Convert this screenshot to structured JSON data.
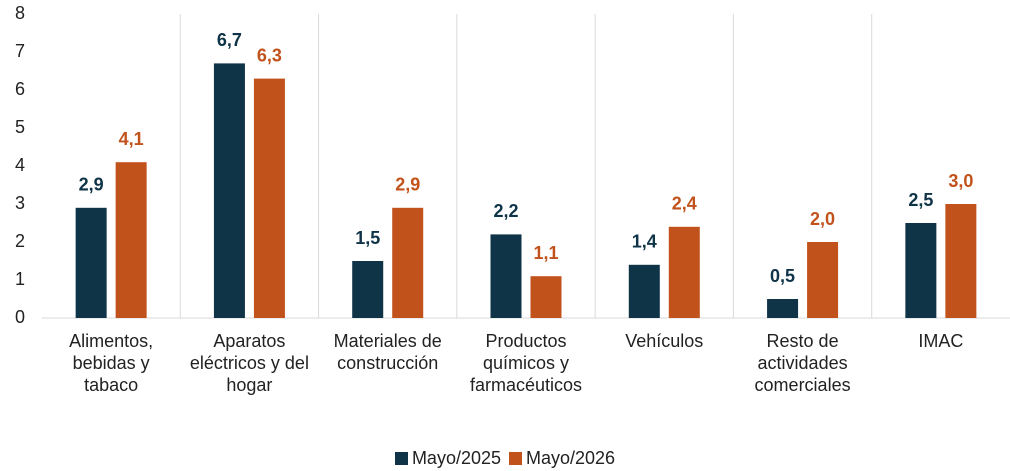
{
  "chart_data": {
    "type": "bar",
    "categories": [
      "Alimentos, bebidas y tabaco",
      "Aparatos eléctricos y del hogar",
      "Materiales de construcción",
      "Productos químicos y farmacéuticos",
      "Vehículos",
      "Resto de actividades comerciales",
      "IMAC"
    ],
    "series": [
      {
        "name": "Mayo/2025",
        "color": "#0f3347",
        "values": [
          2.9,
          6.7,
          1.5,
          2.2,
          1.4,
          0.5,
          2.5
        ],
        "value_labels": [
          "2,9",
          "6,7",
          "1,5",
          "2,2",
          "1,4",
          "0,5",
          "2,5"
        ]
      },
      {
        "name": "Mayo/2026",
        "color": "#c2521b",
        "values": [
          4.1,
          6.3,
          2.9,
          1.1,
          2.4,
          2.0,
          3.0
        ],
        "value_labels": [
          "4,1",
          "6,3",
          "2,9",
          "1,1",
          "2,4",
          "2,0",
          "3,0"
        ]
      }
    ],
    "ylim": [
      0,
      8
    ],
    "yticks": [
      0,
      1,
      2,
      3,
      4,
      5,
      6,
      7,
      8
    ],
    "legend": "bottom"
  }
}
